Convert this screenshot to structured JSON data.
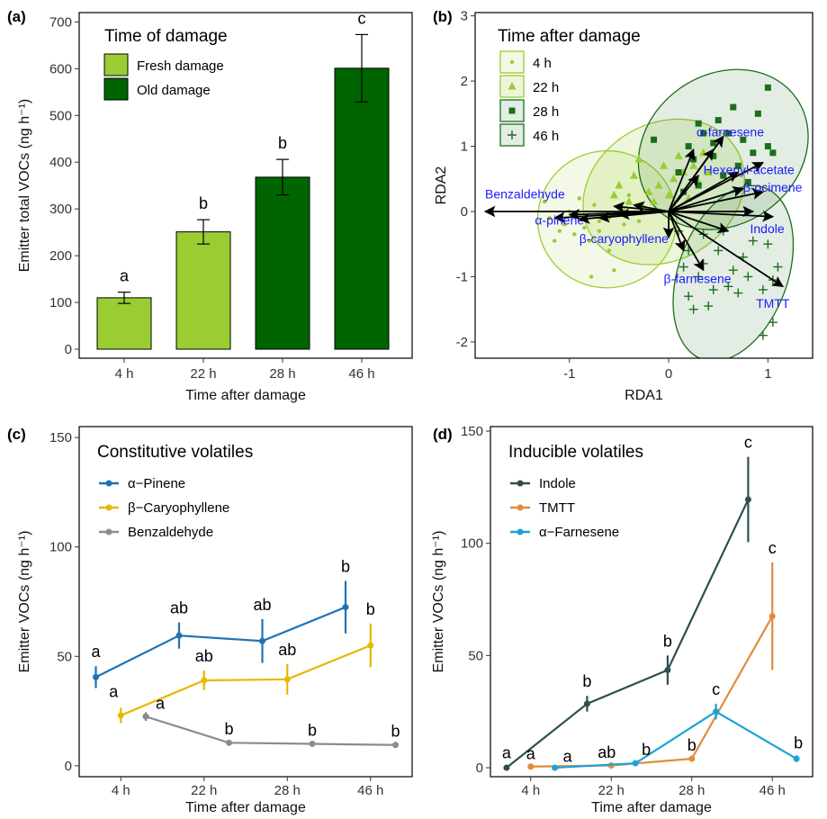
{
  "panels": {
    "a": {
      "label": "(a)"
    },
    "b": {
      "label": "(b)"
    },
    "c": {
      "label": "(c)"
    },
    "d": {
      "label": "(d)"
    }
  },
  "colors": {
    "fresh": "#9acd32",
    "old": "#006400",
    "h4": "#9acd32",
    "h22": "#9acd32",
    "h28": "#1b6e1b",
    "h46": "#1b6e1b",
    "pinene": "#1f72b4",
    "caryophyllene": "#e6b800",
    "benzaldehyde": "#8c8c8c",
    "indole": "#2f4f4f",
    "tmtt": "#e08c3c",
    "farnesene": "#1ba3d6",
    "arrow_label": "#1a1aff"
  },
  "chart_data": [
    {
      "id": "a",
      "type": "bar",
      "ylabel": "Emitter total VOCs (ng h⁻¹)",
      "xlabel": "Time after damage",
      "categories": [
        "4 h",
        "22 h",
        "28 h",
        "46 h"
      ],
      "values": [
        110,
        251,
        368,
        601
      ],
      "errors": [
        12,
        26,
        38,
        72
      ],
      "letters": [
        "a",
        "b",
        "b",
        "c"
      ],
      "groups": [
        "Fresh damage",
        "Fresh damage",
        "Old damage",
        "Old damage"
      ],
      "ylim": [
        0,
        720
      ],
      "yticks": [
        0,
        100,
        200,
        300,
        400,
        500,
        600,
        700
      ],
      "legend": {
        "title": "Time of damage",
        "entries": [
          "Fresh damage",
          "Old damage"
        ],
        "placement": "top-left"
      }
    },
    {
      "id": "b",
      "type": "scatter",
      "xlabel": "RDA1",
      "ylabel": "RDA2",
      "xlim": [
        -1.95,
        1.45
      ],
      "ylim": [
        -2.25,
        3.05
      ],
      "xticks": [
        -1,
        0,
        1
      ],
      "yticks": [
        -2,
        -1,
        0,
        1,
        2,
        3
      ],
      "legend": {
        "title": "Time after damage",
        "entries": [
          "4 h",
          "22 h",
          "28 h",
          "46 h"
        ],
        "placement": "top-left"
      },
      "groups": [
        {
          "name": "4 h",
          "marker": "dot",
          "points": [
            [
              -0.75,
              0.1
            ],
            [
              -0.9,
              -0.05
            ],
            [
              -0.6,
              -0.1
            ],
            [
              -1.05,
              -0.2
            ],
            [
              -0.85,
              -0.25
            ],
            [
              -1.1,
              -0.3
            ],
            [
              -0.95,
              -0.35
            ],
            [
              -0.7,
              -0.3
            ],
            [
              -1.2,
              -0.1
            ],
            [
              -0.5,
              0.05
            ],
            [
              -0.45,
              -0.2
            ],
            [
              -0.8,
              -0.45
            ],
            [
              -0.6,
              -0.6
            ],
            [
              -0.9,
              0.2
            ],
            [
              -1.25,
              0.15
            ],
            [
              -0.4,
              0.25
            ],
            [
              -0.3,
              -0.15
            ],
            [
              -1.0,
              0.0
            ],
            [
              -0.7,
              -0.15
            ],
            [
              -0.78,
              -1.0
            ],
            [
              -0.55,
              -0.9
            ],
            [
              -1.15,
              -0.45
            ]
          ]
        },
        {
          "name": "22 h",
          "marker": "triangle",
          "points": [
            [
              -0.55,
              0.25
            ],
            [
              -0.4,
              0.15
            ],
            [
              -0.25,
              0.05
            ],
            [
              -0.1,
              0.4
            ],
            [
              -0.05,
              0.7
            ],
            [
              0.1,
              0.85
            ],
            [
              0.15,
              0.6
            ],
            [
              -0.35,
              0.55
            ],
            [
              -0.2,
              0.3
            ],
            [
              0.05,
              0.5
            ],
            [
              0.25,
              0.7
            ],
            [
              0.3,
              0.45
            ],
            [
              -0.5,
              0.4
            ],
            [
              -0.15,
              0.15
            ],
            [
              0.2,
              0.2
            ],
            [
              -0.3,
              0.8
            ],
            [
              0.0,
              0.25
            ],
            [
              0.4,
              0.6
            ],
            [
              0.35,
              0.9
            ],
            [
              -0.45,
              0.0
            ]
          ]
        },
        {
          "name": "28 h",
          "marker": "square",
          "points": [
            [
              0.1,
              0.6
            ],
            [
              0.25,
              0.8
            ],
            [
              0.35,
              1.2
            ],
            [
              0.5,
              1.4
            ],
            [
              0.65,
              1.6
            ],
            [
              0.9,
              1.5
            ],
            [
              1.0,
              1.9
            ],
            [
              0.2,
              1.0
            ],
            [
              0.45,
              0.85
            ],
            [
              0.75,
              1.1
            ],
            [
              0.85,
              0.9
            ],
            [
              1.05,
              0.9
            ],
            [
              0.55,
              0.55
            ],
            [
              0.3,
              0.4
            ],
            [
              0.6,
              1.2
            ],
            [
              0.7,
              0.7
            ],
            [
              0.15,
              0.3
            ],
            [
              0.45,
              1.05
            ],
            [
              1.0,
              1.0
            ],
            [
              0.8,
              0.45
            ],
            [
              -0.15,
              1.1
            ],
            [
              0.3,
              1.35
            ]
          ]
        },
        {
          "name": "46 h",
          "marker": "plus",
          "points": [
            [
              0.2,
              -0.6
            ],
            [
              0.35,
              -0.8
            ],
            [
              0.5,
              -0.6
            ],
            [
              0.65,
              -0.9
            ],
            [
              0.8,
              -1.0
            ],
            [
              0.95,
              -1.2
            ],
            [
              1.05,
              -1.7
            ],
            [
              0.95,
              -1.9
            ],
            [
              0.3,
              -1.0
            ],
            [
              0.2,
              -1.3
            ],
            [
              0.45,
              -1.2
            ],
            [
              0.6,
              -1.15
            ],
            [
              0.75,
              -0.7
            ],
            [
              1.0,
              -0.5
            ],
            [
              1.1,
              -0.85
            ],
            [
              1.05,
              -1.05
            ],
            [
              0.35,
              -0.35
            ],
            [
              0.55,
              -0.3
            ],
            [
              0.85,
              -0.45
            ],
            [
              0.4,
              -1.45
            ],
            [
              0.25,
              -1.5
            ],
            [
              0.1,
              -0.3
            ],
            [
              0.15,
              -0.85
            ],
            [
              0.7,
              -1.25
            ]
          ]
        }
      ],
      "ellipses": [
        {
          "group": "4 h",
          "cx": -0.62,
          "cy": -0.12,
          "rx": 0.7,
          "ry": 1.05,
          "angle": -5
        },
        {
          "group": "22 h",
          "cx": -0.05,
          "cy": 0.3,
          "rx": 0.85,
          "ry": 1.05,
          "angle": -30
        },
        {
          "group": "28 h",
          "cx": 0.55,
          "cy": 0.95,
          "rx": 0.9,
          "ry": 1.15,
          "angle": -35
        },
        {
          "group": "46 h",
          "cx": 0.65,
          "cy": -0.95,
          "rx": 0.55,
          "ry": 1.4,
          "angle": 20
        }
      ],
      "arrows": [
        {
          "label": "Benzaldehyde",
          "x": -1.85,
          "y": 0.0
        },
        {
          "label": "α-pinene",
          "x": -1.15,
          "y": -0.1
        },
        {
          "label": "β-caryophyllene",
          "x": -0.9,
          "y": -0.12
        },
        {
          "label": "α-farnesene",
          "x": 0.55,
          "y": 1.15
        },
        {
          "label": "Hexenyl-acetate",
          "x": 0.95,
          "y": 0.75
        },
        {
          "label": "β-ocimene",
          "x": 0.95,
          "y": 0.3
        },
        {
          "label": "Indole",
          "x": 1.05,
          "y": -0.08
        },
        {
          "label": "β-farnesene",
          "x": 0.35,
          "y": -0.9
        },
        {
          "label": "TMTT",
          "x": 1.15,
          "y": -1.15
        }
      ],
      "extra_arrows": [
        {
          "x": -1.0,
          "y": -0.05
        },
        {
          "x": -0.7,
          "y": -0.1
        },
        {
          "x": -0.55,
          "y": 0.08
        },
        {
          "x": -0.35,
          "y": 0.1
        },
        {
          "x": -0.5,
          "y": -0.05
        },
        {
          "x": 0.25,
          "y": 0.95
        },
        {
          "x": 0.45,
          "y": 0.95
        },
        {
          "x": 0.7,
          "y": 0.6
        },
        {
          "x": 0.3,
          "y": 0.55
        },
        {
          "x": 0.75,
          "y": 0.35
        },
        {
          "x": 0.0,
          "y": -0.4
        },
        {
          "x": 0.15,
          "y": -0.6
        },
        {
          "x": 0.85,
          "y": 0.0
        },
        {
          "x": 0.6,
          "y": -0.3
        }
      ]
    },
    {
      "id": "c",
      "type": "line",
      "ylabel": "Emitter VOCs (ng h⁻¹)",
      "xlabel": "Time after damage",
      "categories": [
        "4 h",
        "22 h",
        "28 h",
        "46 h"
      ],
      "ylim": [
        -5,
        155
      ],
      "yticks": [
        0,
        50,
        100,
        150
      ],
      "legend": {
        "title": "Constitutive volatiles",
        "entries": [
          "α−Pinene",
          "β−Caryophyllene",
          "Benzaldehyde"
        ],
        "placement": "top-left"
      },
      "series": [
        {
          "name": "α−Pinene",
          "x": [
            0.7,
            1.7,
            2.7,
            3.7
          ],
          "values": [
            40.5,
            59.5,
            57,
            72.5
          ],
          "errors": [
            5,
            6,
            10,
            12
          ],
          "letters": [
            "a",
            "ab",
            "ab",
            "b"
          ]
        },
        {
          "name": "β−Caryophyllene",
          "x": [
            1.0,
            2.0,
            3.0,
            4.0
          ],
          "values": [
            23,
            39,
            39.5,
            55
          ],
          "errors": [
            3.5,
            4.5,
            7,
            10
          ],
          "letters": [
            "a",
            "ab",
            "ab",
            "b"
          ]
        },
        {
          "name": "Benzaldehyde",
          "x": [
            1.3,
            2.3,
            3.3,
            4.3
          ],
          "values": [
            22.5,
            10.5,
            10,
            9.5
          ],
          "errors": [
            2,
            0.5,
            0.5,
            0.5
          ],
          "letters": [
            "a",
            "b",
            "b",
            "b"
          ]
        }
      ]
    },
    {
      "id": "d",
      "type": "line",
      "ylabel": "Emitter VOCs (ng h⁻¹)",
      "xlabel": "Time after damage",
      "categories": [
        "4 h",
        "22 h",
        "28 h",
        "46 h"
      ],
      "ylim": [
        -4,
        152
      ],
      "yticks": [
        0,
        50,
        100,
        150
      ],
      "legend": {
        "title": "Inducible volatiles",
        "entries": [
          "Indole",
          "TMTT",
          "α−Farnesene"
        ],
        "placement": "top-left"
      },
      "series": [
        {
          "name": "Indole",
          "x": [
            0.7,
            1.7,
            2.7,
            3.7
          ],
          "values": [
            0,
            28.5,
            43.5,
            119.5
          ],
          "errors": [
            0.3,
            3.5,
            6.5,
            19
          ],
          "letters": [
            "a",
            "b",
            "b",
            "c"
          ]
        },
        {
          "name": "TMTT",
          "x": [
            1.0,
            2.0,
            3.0,
            4.0
          ],
          "values": [
            0.5,
            1,
            4,
            67.5
          ],
          "errors": [
            0.2,
            0.3,
            0.5,
            24
          ],
          "letters": [
            "a",
            "ab",
            "b",
            "c"
          ]
        },
        {
          "name": "α−Farnesene",
          "x": [
            1.3,
            2.3,
            3.3,
            4.3
          ],
          "values": [
            0,
            2,
            25,
            4
          ],
          "errors": [
            0.2,
            0.5,
            3.5,
            1.5
          ],
          "letters": [
            "a",
            "b",
            "c",
            "b"
          ]
        }
      ]
    }
  ]
}
